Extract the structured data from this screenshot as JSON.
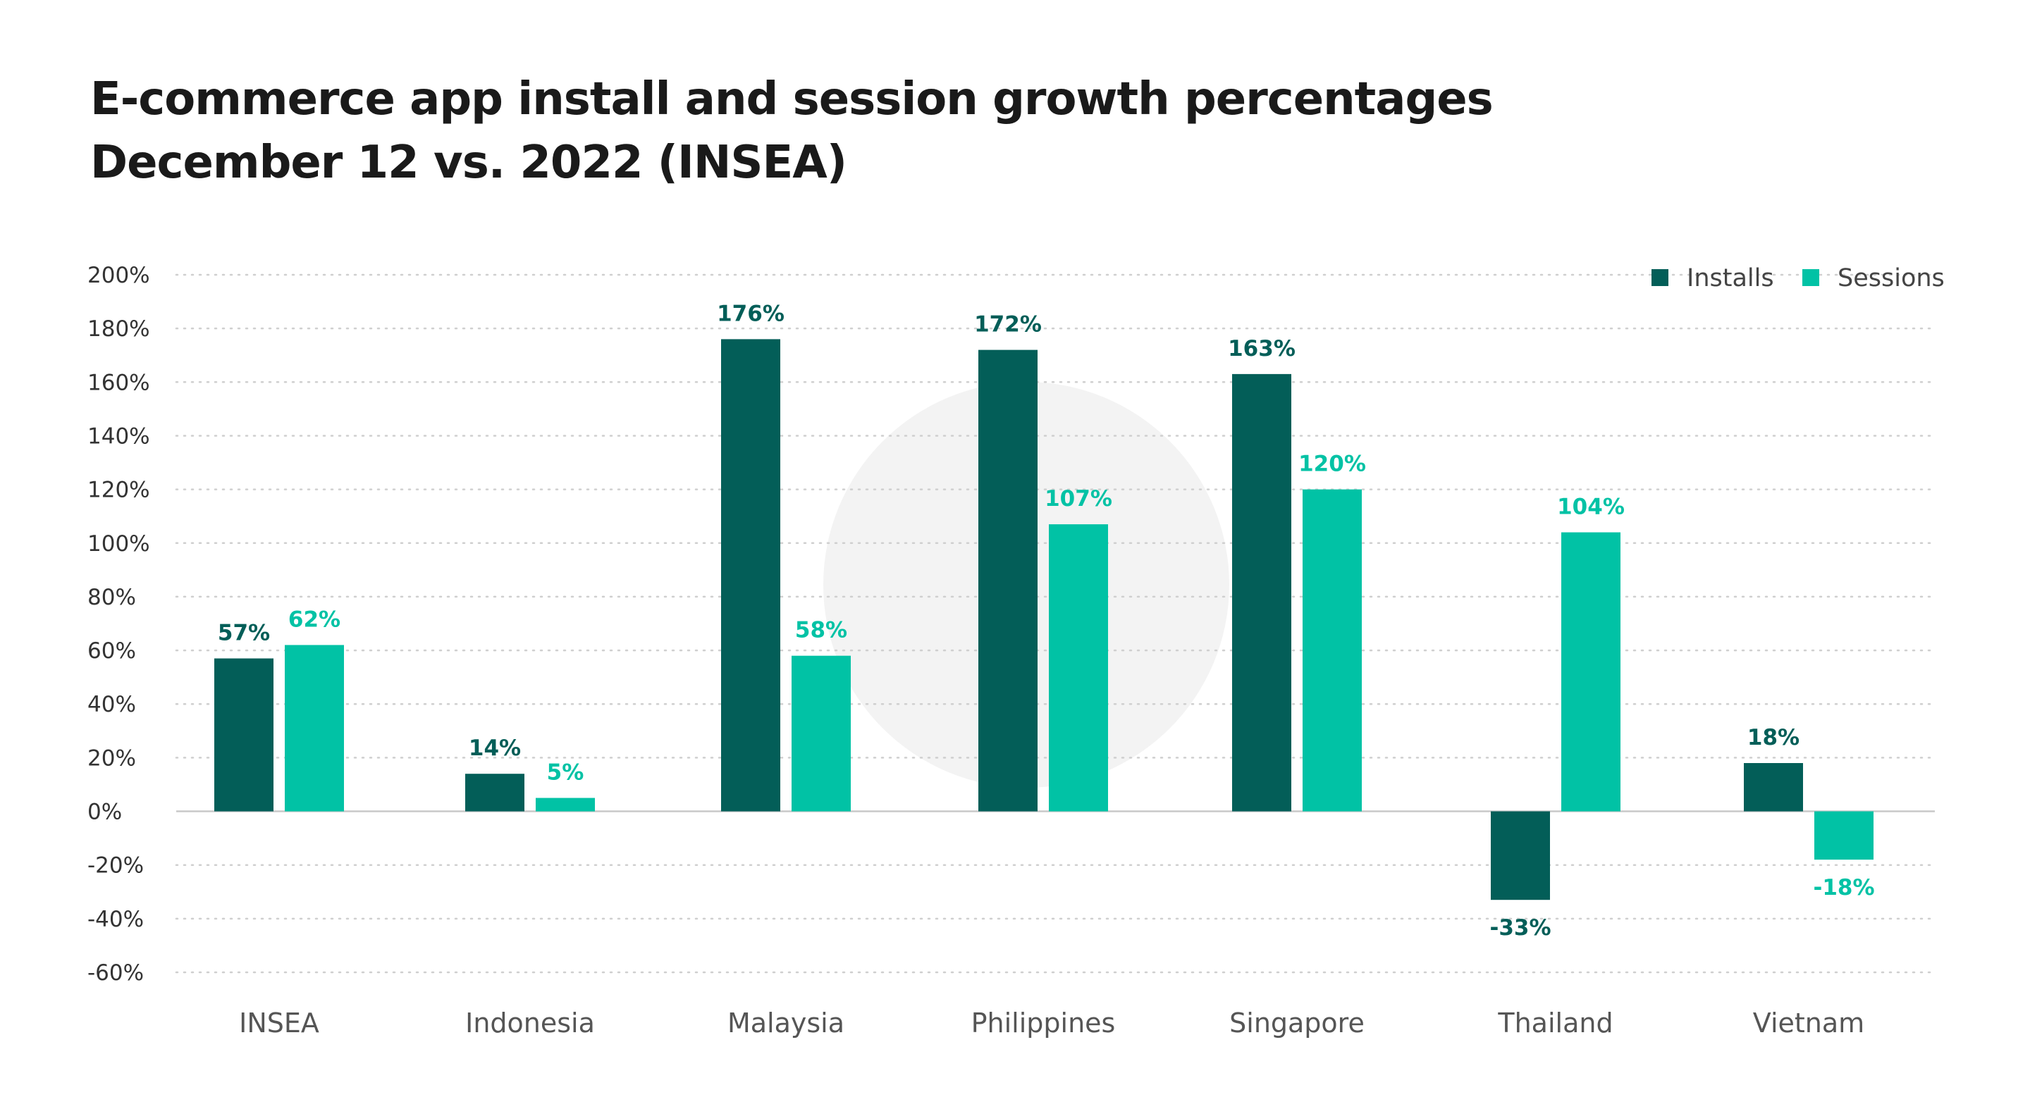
{
  "title": {
    "line1": "E-commerce app install and session growth percentages",
    "line2": "December 12 vs. 2022 (INSEA)"
  },
  "chart_data": {
    "type": "bar",
    "categories": [
      "INSEA",
      "Indonesia",
      "Malaysia",
      "Philippines",
      "Singapore",
      "Thailand",
      "Vietnam"
    ],
    "series": [
      {
        "name": "Installs",
        "color": "#035e58",
        "values": [
          57,
          14,
          176,
          172,
          163,
          -33,
          18
        ]
      },
      {
        "name": "Sessions",
        "color": "#01c2a5",
        "values": [
          62,
          5,
          58,
          107,
          120,
          104,
          -18
        ]
      }
    ],
    "value_labels": {
      "Installs": [
        "57%",
        "14%",
        "176%",
        "172%",
        "163%",
        "-33%",
        "18%"
      ],
      "Sessions": [
        "62%",
        "5%",
        "58%",
        "107%",
        "120%",
        "104%",
        "-18%"
      ]
    },
    "ylim": [
      -60,
      200
    ],
    "yticks": [
      200,
      180,
      160,
      140,
      120,
      100,
      80,
      60,
      40,
      20,
      0,
      -20,
      -40,
      -60
    ],
    "ytick_labels": [
      "200%",
      "180%",
      "160%",
      "140%",
      "120%",
      "100%",
      "80%",
      "60%",
      "40%",
      "20%",
      "0%",
      "-20%",
      "-40%",
      "-60%"
    ],
    "xlabel": "",
    "ylabel": "",
    "grid": true,
    "legend_position": "top-right"
  }
}
